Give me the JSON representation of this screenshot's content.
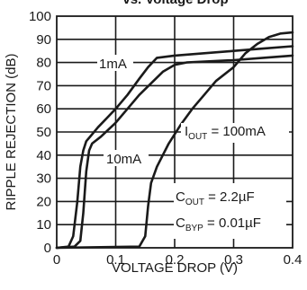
{
  "chart_data": {
    "type": "line",
    "title": "vs. Voltage Drop",
    "xlabel": "VOLTAGE DROP (V)",
    "ylabel": "RIPPLE REJECTION (dB)",
    "xlim": [
      0,
      0.4
    ],
    "ylim": [
      0,
      100
    ],
    "x_ticks": [
      "0",
      "0.1",
      "0.2",
      "0.3",
      "0.4"
    ],
    "y_ticks": [
      "0",
      "10",
      "20",
      "30",
      "40",
      "50",
      "60",
      "70",
      "80",
      "90",
      "100"
    ],
    "grid": true,
    "series": [
      {
        "name": "1mA",
        "x": [
          0,
          0.02,
          0.028,
          0.035,
          0.04,
          0.045,
          0.05,
          0.06,
          0.07,
          0.085,
          0.1,
          0.12,
          0.14,
          0.155,
          0.17,
          0.2,
          0.25,
          0.3,
          0.35,
          0.4
        ],
        "y": [
          0,
          0.5,
          5,
          20,
          35,
          42,
          46,
          49,
          52,
          56,
          60,
          66,
          73,
          78,
          82,
          83,
          84,
          85,
          86,
          87
        ]
      },
      {
        "name": "10mA",
        "x": [
          0,
          0.03,
          0.04,
          0.045,
          0.05,
          0.055,
          0.06,
          0.075,
          0.1,
          0.12,
          0.14,
          0.16,
          0.18,
          0.2,
          0.22,
          0.3,
          0.35,
          0.4
        ],
        "y": [
          0,
          0.5,
          3,
          15,
          33,
          42,
          45,
          48,
          54,
          60,
          66,
          71,
          76,
          79,
          80,
          81,
          82,
          83
        ]
      },
      {
        "name": "IOUT = 100mA",
        "x": [
          0,
          0.14,
          0.15,
          0.155,
          0.16,
          0.17,
          0.19,
          0.21,
          0.23,
          0.25,
          0.27,
          0.3,
          0.32,
          0.34,
          0.36,
          0.38,
          0.4
        ],
        "y": [
          0,
          0.5,
          5,
          18,
          28,
          35,
          45,
          53,
          60,
          66,
          72,
          78,
          84,
          88,
          91,
          92.5,
          93
        ]
      }
    ],
    "annotations": {
      "label_1mA": "1mA",
      "label_10mA": "10mA",
      "iout_main": "I",
      "iout_sub": "OUT",
      "iout_value": " = 100mA",
      "cout_main": "C",
      "cout_sub": "OUT",
      "cout_value": " = 2.2µF",
      "cbyp_main": "C",
      "cbyp_sub": "BYP",
      "cbyp_value": " = 0.01µF"
    }
  }
}
